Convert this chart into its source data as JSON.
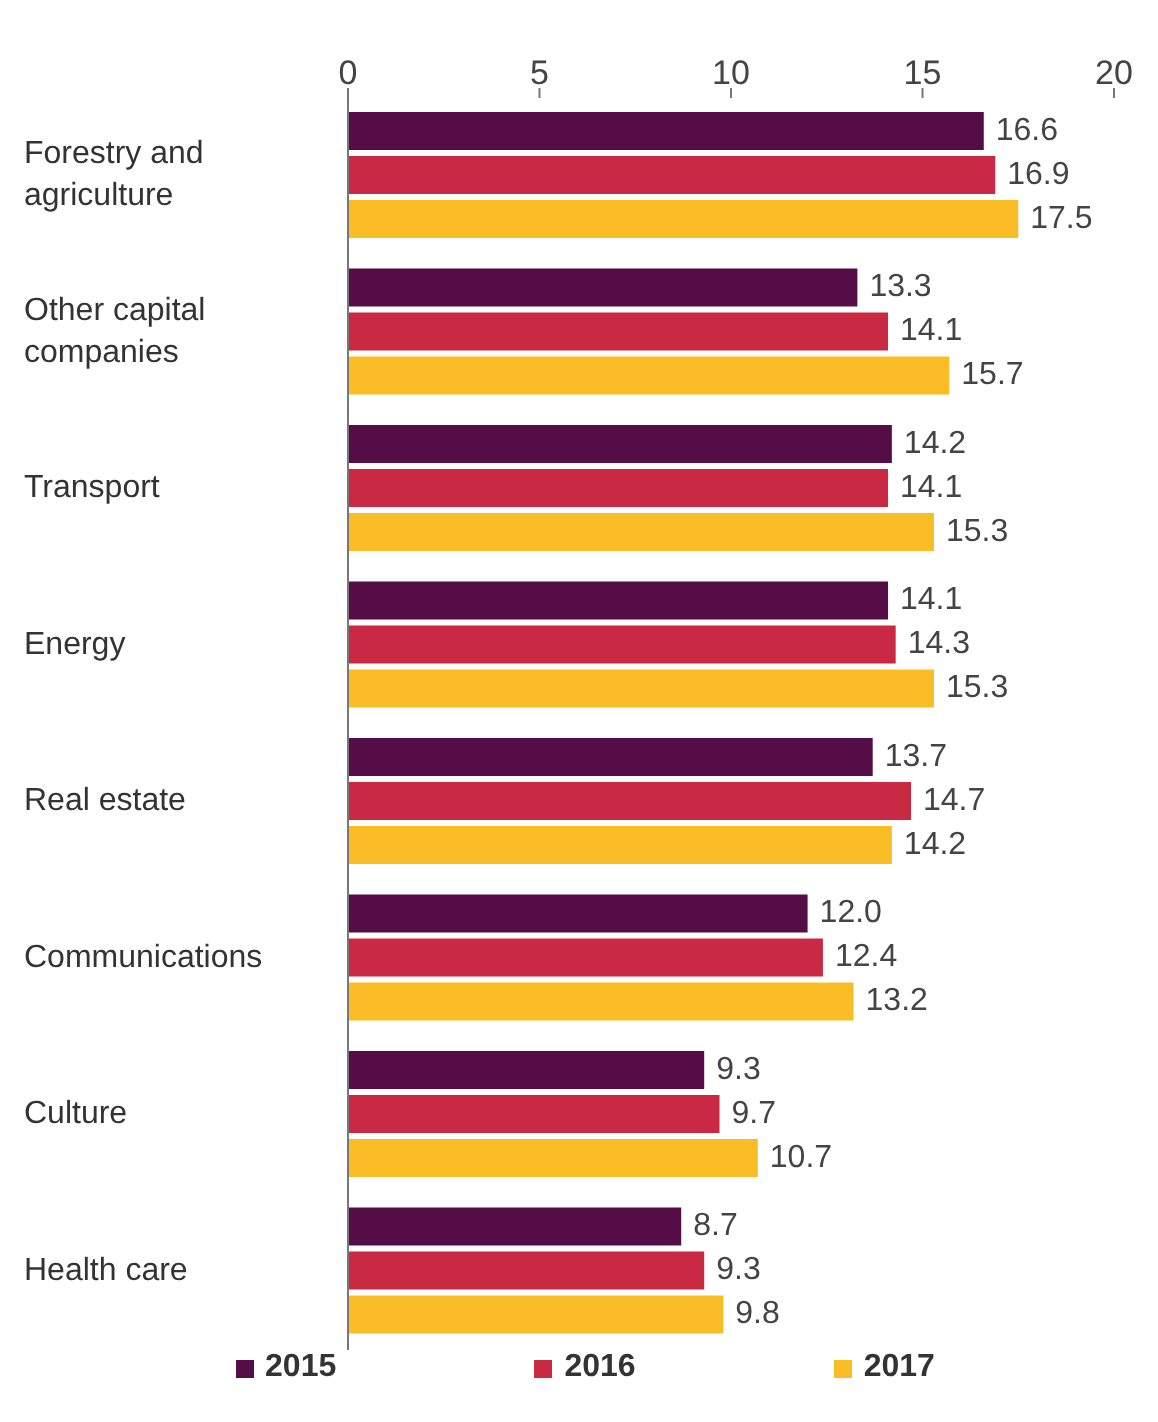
{
  "chart_data": {
    "type": "bar",
    "orientation": "horizontal",
    "categories": [
      "Forestry and agriculture",
      "Other capital companies",
      "Transport",
      "Energy",
      "Real estate",
      "Communications",
      "Culture",
      "Health care"
    ],
    "series": [
      {
        "name": "2015",
        "color": "#560d47",
        "values": [
          16.6,
          13.3,
          14.2,
          14.1,
          13.7,
          12.0,
          9.3,
          8.7
        ],
        "value_labels": [
          "16.6",
          "13.3",
          "14.2",
          "14.1",
          "13.7",
          "12.0",
          "9.3",
          "8.7"
        ]
      },
      {
        "name": "2016",
        "color": "#c92943",
        "values": [
          16.9,
          14.1,
          14.1,
          14.3,
          14.7,
          12.4,
          9.7,
          9.3
        ],
        "value_labels": [
          "16.9",
          "14.1",
          "14.1",
          "14.3",
          "14.7",
          "12.4",
          "9.7",
          "9.3"
        ]
      },
      {
        "name": "2017",
        "color": "#fbbd26",
        "values": [
          17.5,
          15.7,
          15.3,
          15.3,
          14.2,
          13.2,
          10.7,
          9.8
        ],
        "value_labels": [
          "17.5",
          "15.7",
          "15.3",
          "15.3",
          "14.2",
          "13.2",
          "10.7",
          "9.8"
        ]
      }
    ],
    "xlim": [
      0,
      20
    ],
    "xticks": [
      0,
      5,
      10,
      15,
      20
    ],
    "grid": false,
    "legend": "bottom"
  }
}
